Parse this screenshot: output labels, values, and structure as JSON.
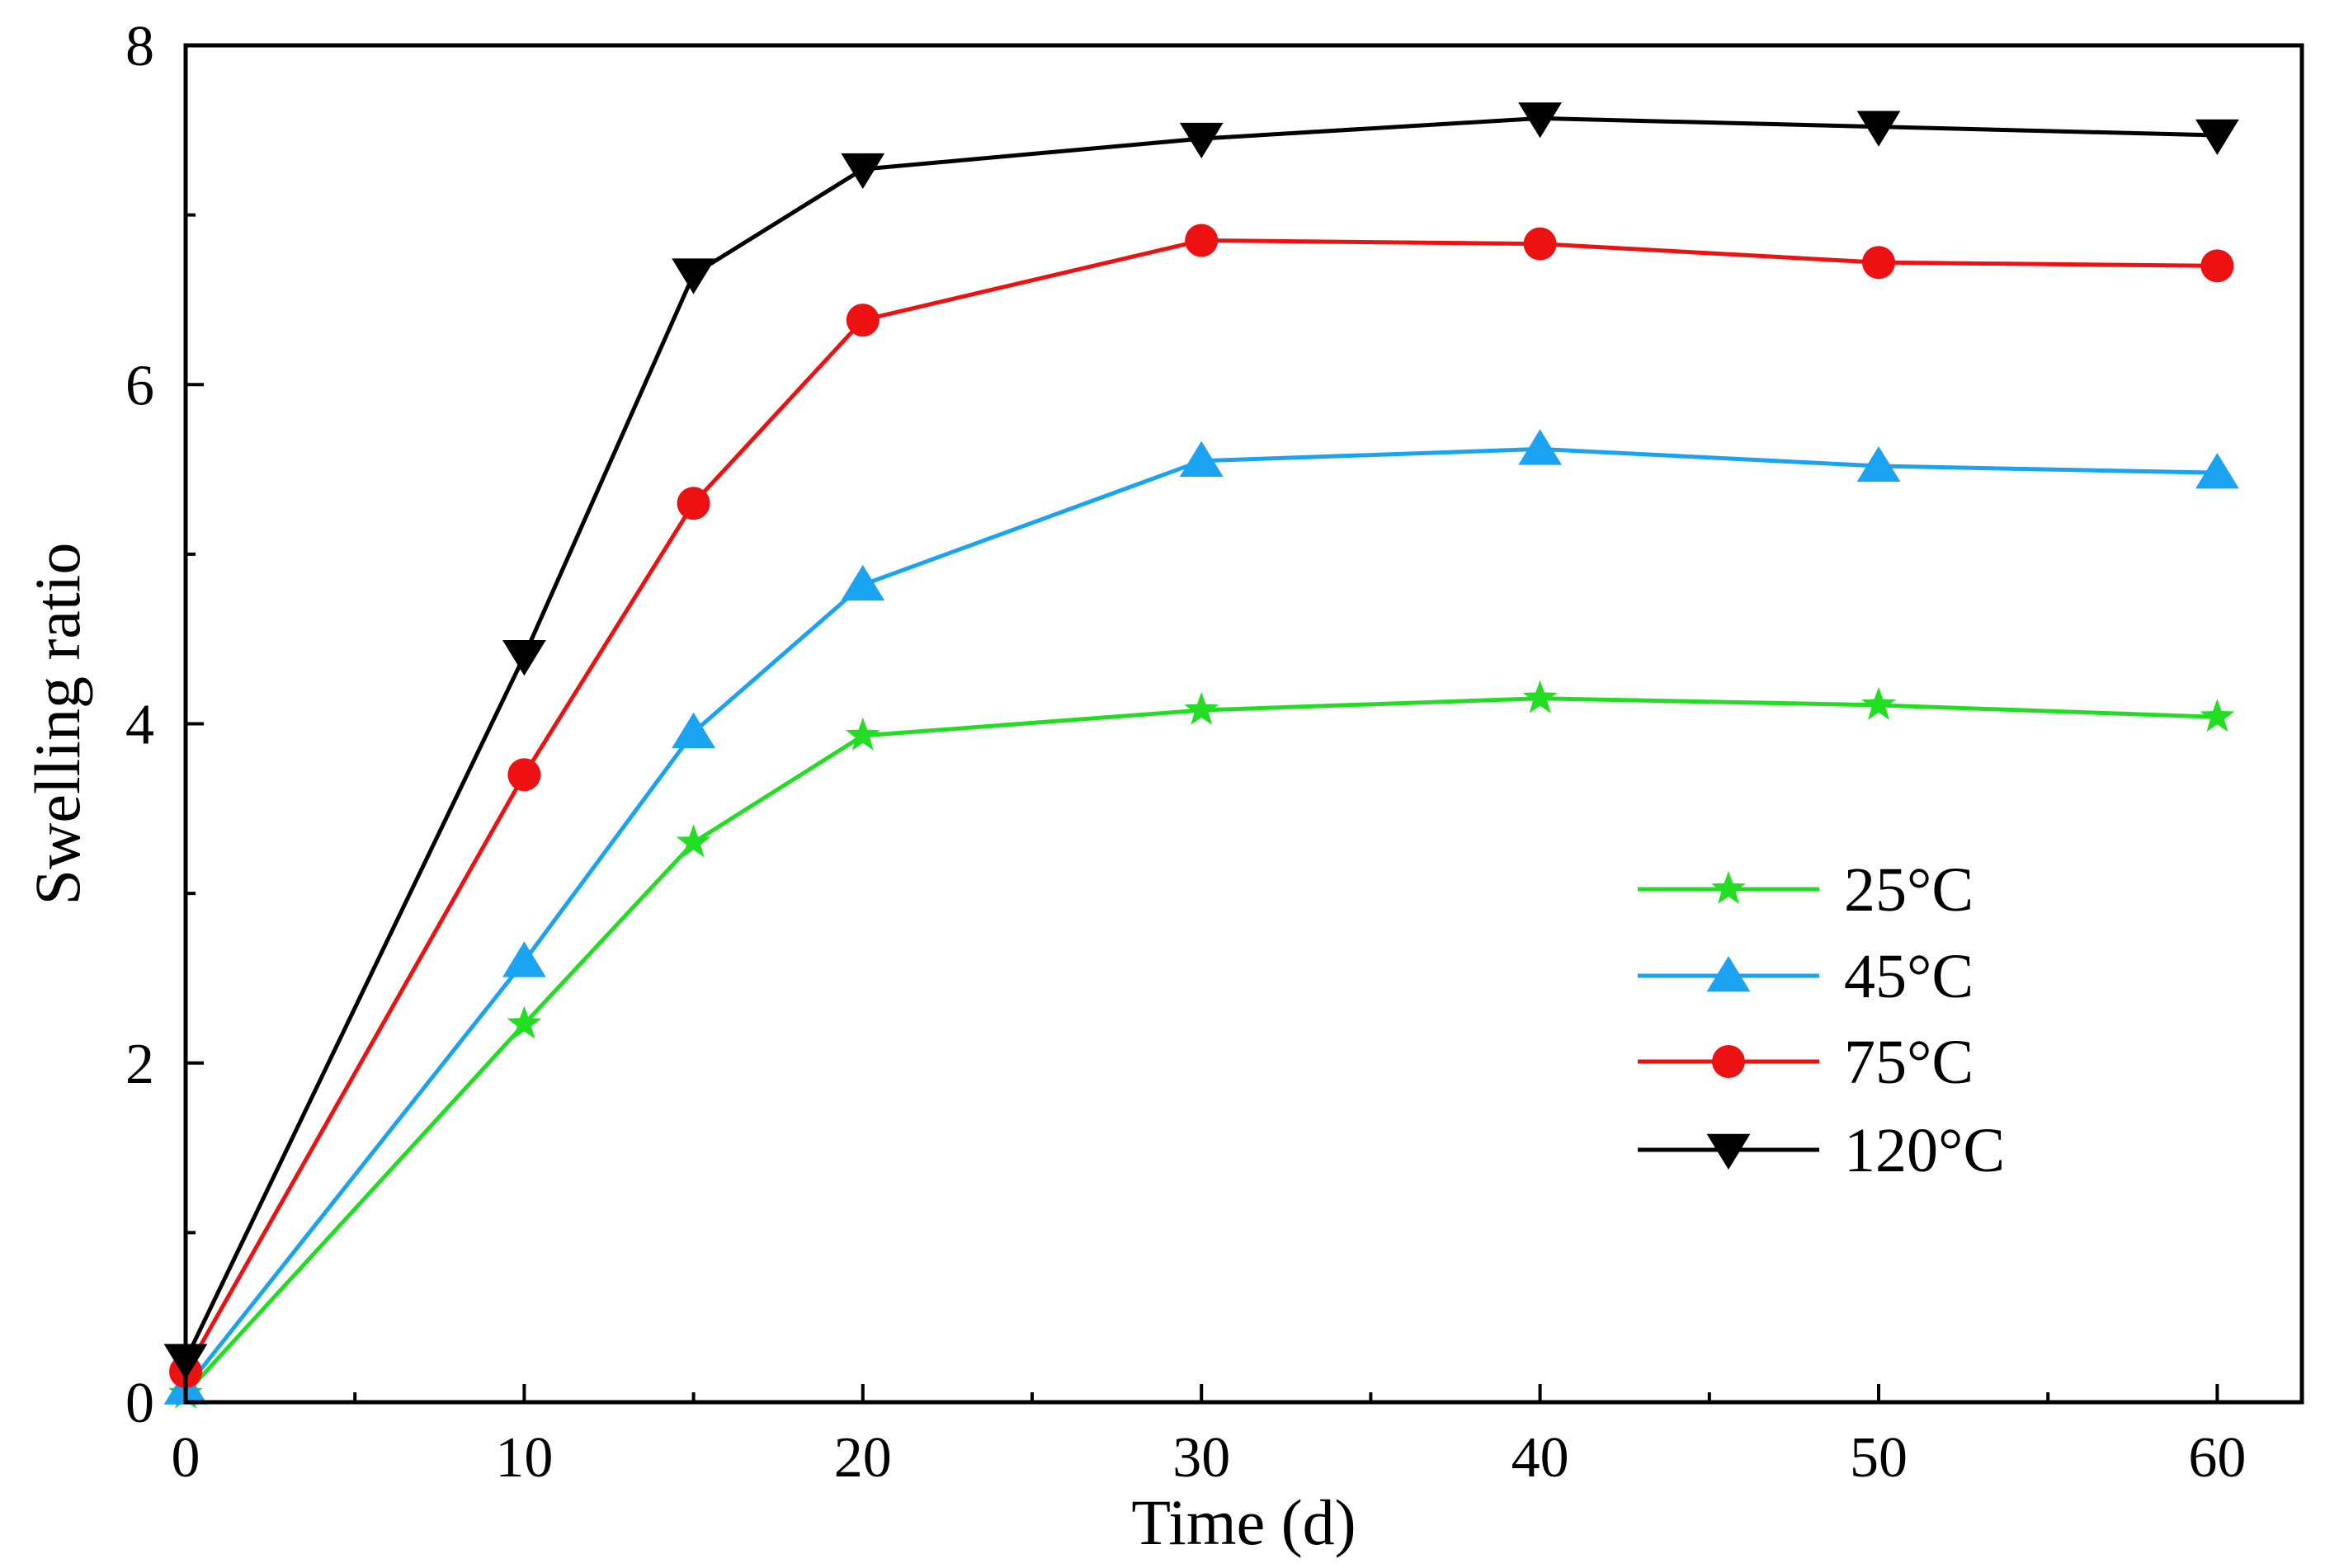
{
  "chart_data": {
    "type": "line",
    "title": "",
    "xlabel": "Time (d)",
    "ylabel": "Swelling ratio",
    "xlim": [
      0,
      62.5
    ],
    "ylim": [
      0,
      8
    ],
    "xticks": [
      0,
      10,
      20,
      30,
      40,
      50,
      60
    ],
    "xtick_labels": [
      "0",
      "10",
      "20",
      "30",
      "40",
      "50",
      "60"
    ],
    "yticks": [
      0,
      2,
      4,
      6,
      8
    ],
    "ytick_labels": [
      "0",
      "2",
      "4",
      "6",
      "8"
    ],
    "legend_position": "center-right",
    "grid": false,
    "x": [
      0,
      10,
      15,
      20,
      30,
      40,
      50,
      60
    ],
    "series": [
      {
        "name": "25°C",
        "color": "#22dd22",
        "marker": "star",
        "values": [
          0.05,
          2.23,
          3.3,
          3.93,
          4.08,
          4.15,
          4.11,
          4.04
        ]
      },
      {
        "name": "45°C",
        "color": "#1aa3f0",
        "marker": "triangle-up",
        "values": [
          0.08,
          2.6,
          3.95,
          4.82,
          5.55,
          5.62,
          5.52,
          5.48
        ]
      },
      {
        "name": "75°C",
        "color": "#ee1111",
        "marker": "circle",
        "values": [
          0.18,
          3.7,
          5.3,
          6.38,
          6.85,
          6.83,
          6.72,
          6.7
        ]
      },
      {
        "name": "120°C",
        "color": "#000000",
        "marker": "triangle-down",
        "values": [
          0.25,
          4.4,
          6.65,
          7.27,
          7.45,
          7.57,
          7.52,
          7.47
        ]
      }
    ]
  }
}
